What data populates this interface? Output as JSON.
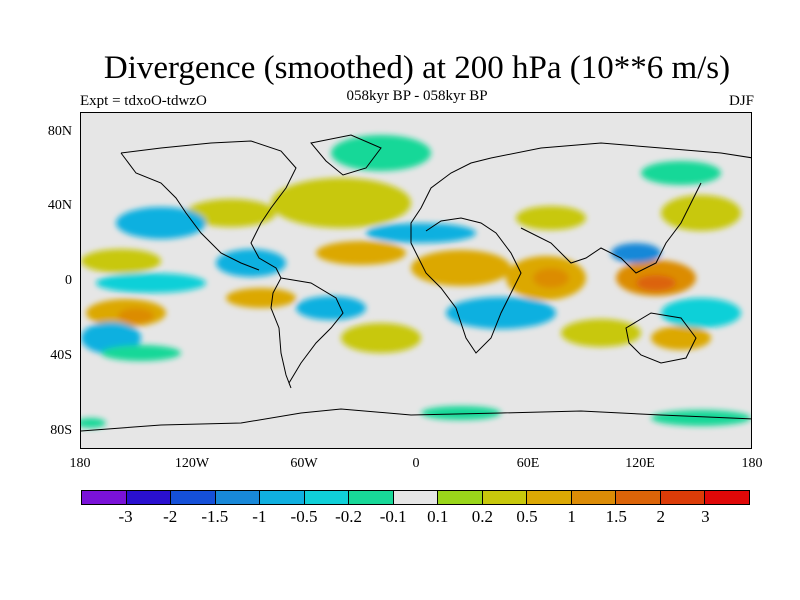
{
  "title": "Divergence (smoothed) at 200 hPa (10**6 m/s)",
  "subtitle": "058kyr BP - 058kyr BP",
  "experiment": "Expt = tdxoO-tdwzO",
  "season": "DJF",
  "y_axis": {
    "ticks": [
      "80N",
      "40N",
      "0",
      "40S",
      "80S"
    ]
  },
  "x_axis": {
    "ticks": [
      "180",
      "120W",
      "60W",
      "0",
      "60E",
      "120E",
      "180"
    ]
  },
  "colorbar": {
    "colors": [
      "#7a12d8",
      "#2a10d0",
      "#1550d8",
      "#1888d8",
      "#10b0e0",
      "#10d0d8",
      "#18d898",
      "#e6e6e6",
      "#9ad61a",
      "#c8c80c",
      "#dca804",
      "#dc8c06",
      "#dc6408",
      "#dc3c08",
      "#e00808"
    ],
    "labels": [
      "-3",
      "-2",
      "-1.5",
      "-1",
      "-0.5",
      "-0.2",
      "-0.1",
      "0.1",
      "0.2",
      "0.5",
      "1",
      "1.5",
      "2",
      "3"
    ]
  }
}
